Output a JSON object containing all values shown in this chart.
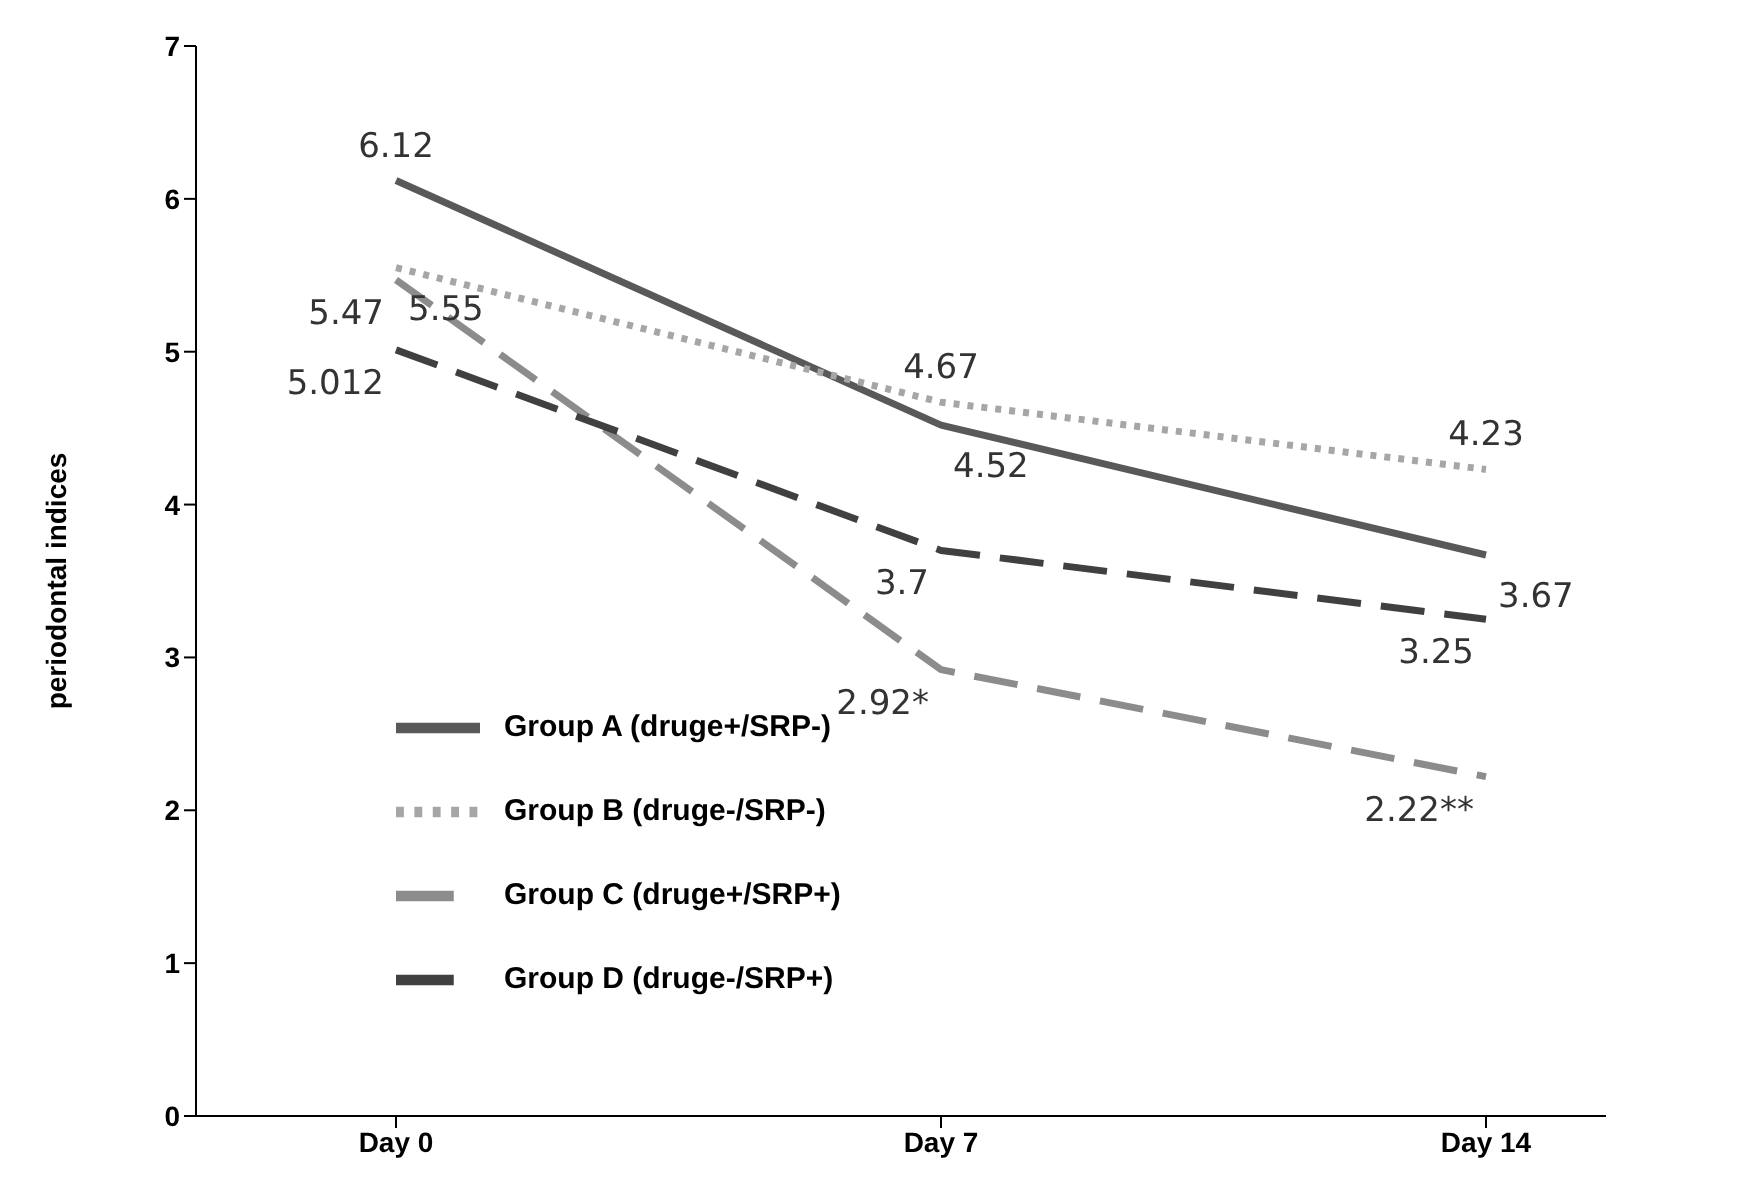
{
  "chart_data": {
    "type": "line",
    "ylabel": "periodontal indices",
    "categories": [
      "Day 0",
      "Day 7",
      "Day 14"
    ],
    "ylim": [
      0,
      7
    ],
    "yticks": [
      0,
      1,
      2,
      3,
      4,
      5,
      6,
      7
    ],
    "grid": false,
    "legend": "bottom left",
    "marker": "none",
    "series": [
      {
        "name": "Group A (druge+/SRP-)",
        "color": "#595959",
        "line_style": "solid",
        "values": [
          6.12,
          4.52,
          3.67
        ],
        "value_labels": [
          "6.12",
          "4.52",
          "3.67"
        ]
      },
      {
        "name": "Group B (druge-/SRP-)",
        "color": "#a6a6a6",
        "line_style": "dotted",
        "values": [
          5.55,
          4.67,
          4.23
        ],
        "value_labels": [
          "5.55",
          "4.67",
          "4.23"
        ]
      },
      {
        "name": "Group C (druge+/SRP+)",
        "color": "#8c8c8c",
        "line_style": "dashed",
        "values": [
          5.47,
          2.92,
          2.22
        ],
        "value_labels": [
          "5.47",
          "2.92*",
          "2.22**"
        ]
      },
      {
        "name": "Group D (druge-/SRP+)",
        "color": "#404040",
        "line_style": "dashed",
        "values": [
          5.012,
          3.7,
          3.25
        ],
        "value_labels": [
          "5.012",
          "3.7",
          "3.25"
        ]
      }
    ]
  }
}
